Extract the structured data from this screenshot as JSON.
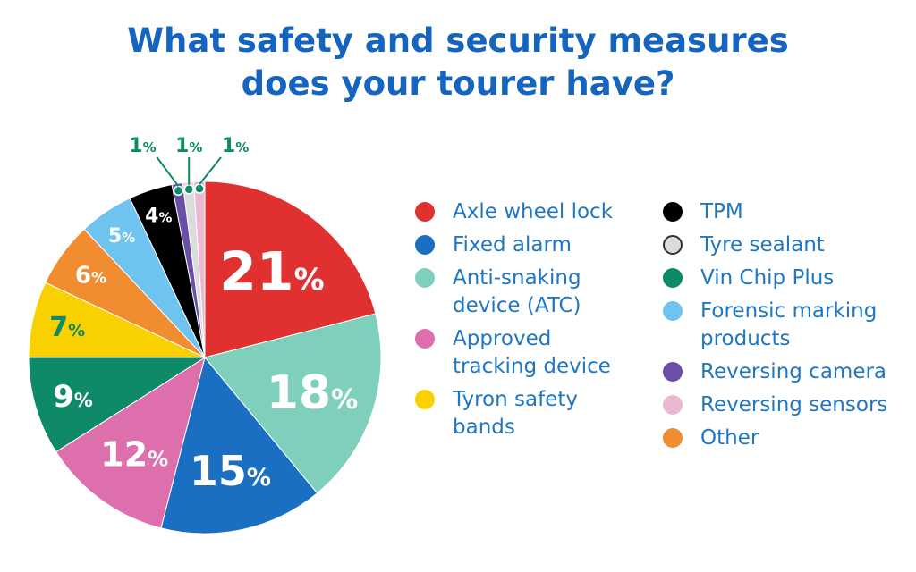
{
  "title_line1": "What safety and security measures",
  "title_line2": "does your tourer have?",
  "chart_data": {
    "type": "pie",
    "title": "What safety and security measures does your tourer have?",
    "unit": "%",
    "slices": [
      {
        "label": "Axle wheel lock",
        "value": 21,
        "color": "#e03030"
      },
      {
        "label": "Anti-snaking device (ATC)",
        "value": 18,
        "color": "#7ecfbc"
      },
      {
        "label": "Fixed alarm",
        "value": 15,
        "color": "#1a6fc2"
      },
      {
        "label": "Approved tracking device",
        "value": 12,
        "color": "#dd6fac"
      },
      {
        "label": "Vin Chip Plus",
        "value": 9,
        "color": "#0e8a68"
      },
      {
        "label": "Tyron safety bands",
        "value": 7,
        "color": "#fad100"
      },
      {
        "label": "Other",
        "value": 6,
        "color": "#f28c30"
      },
      {
        "label": "Forensic marking products",
        "value": 5,
        "color": "#6ec3ef"
      },
      {
        "label": "TPM",
        "value": 4,
        "color": "#000000"
      },
      {
        "label": "Reversing camera",
        "value": 1,
        "color": "#6a4fa6"
      },
      {
        "label": "Tyre sealant",
        "value": 1,
        "color": "#dcdcdc"
      },
      {
        "label": "Reversing sensors",
        "value": 1,
        "color": "#eab8cf"
      }
    ],
    "legend_col1": [
      {
        "label": "Axle wheel lock",
        "color": "#e03030"
      },
      {
        "label": "Fixed alarm",
        "color": "#1a6fc2"
      },
      {
        "label": "Anti-snaking device (ATC)",
        "color": "#7ecfbc"
      },
      {
        "label": "Approved tracking device",
        "color": "#dd6fac"
      },
      {
        "label": "Tyron safety bands",
        "color": "#fad100"
      }
    ],
    "legend_col2": [
      {
        "label": "TPM",
        "color": "#000000"
      },
      {
        "label": "Tyre sealant",
        "color": "#dcdcdc"
      },
      {
        "label": "Vin Chip Plus",
        "color": "#0e8a68"
      },
      {
        "label": "Forensic marking products",
        "color": "#6ec3ef"
      },
      {
        "label": "Reversing camera",
        "color": "#6a4fa6"
      },
      {
        "label": "Reversing sensors",
        "color": "#eab8cf"
      },
      {
        "label": "Other",
        "color": "#f28c30"
      }
    ],
    "callout_color": "#0e8a68",
    "legend_placement": "right"
  }
}
